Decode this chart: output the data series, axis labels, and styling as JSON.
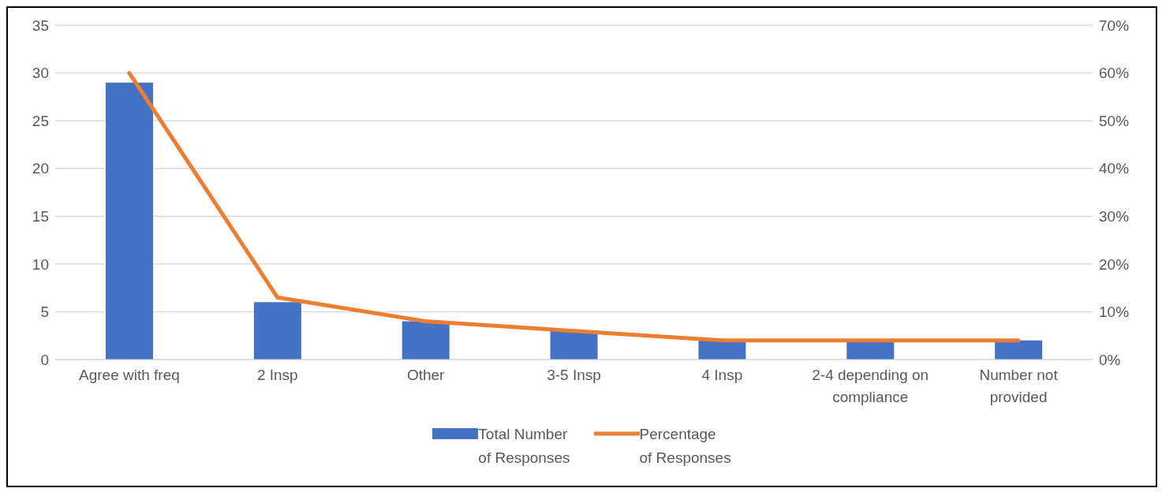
{
  "chart_data": {
    "type": "bar",
    "categories": [
      "Agree with freq",
      "2 Insp",
      "Other",
      "3-5 Insp",
      "4 Insp",
      "2-4 depending on compliance",
      "Number not provided"
    ],
    "series": [
      {
        "name": "Total Number of Responses",
        "color": "#4472c4",
        "values": [
          29,
          6,
          4,
          3,
          2,
          2,
          2
        ]
      },
      {
        "name": "Percentage of Responses",
        "type": "line",
        "axis": "y2",
        "color": "#ed7d31",
        "values": [
          60,
          13,
          8,
          6,
          4,
          4,
          4
        ]
      }
    ],
    "ylim": [
      0,
      35
    ],
    "yticks": [
      0,
      5,
      10,
      15,
      20,
      25,
      30,
      35
    ],
    "y2lim": [
      0,
      70
    ],
    "y2ticks": [
      {
        "value": 0,
        "label": "0%"
      },
      {
        "value": 10,
        "label": "10%"
      },
      {
        "value": 20,
        "label": "20%"
      },
      {
        "value": 30,
        "label": "30%"
      },
      {
        "value": 40,
        "label": "40%"
      },
      {
        "value": 50,
        "label": "50%"
      },
      {
        "value": 60,
        "label": "60%"
      },
      {
        "value": 70,
        "label": "70%"
      }
    ],
    "grid": "y",
    "legend": "bottom",
    "marker": "none",
    "line_style": "solid"
  }
}
